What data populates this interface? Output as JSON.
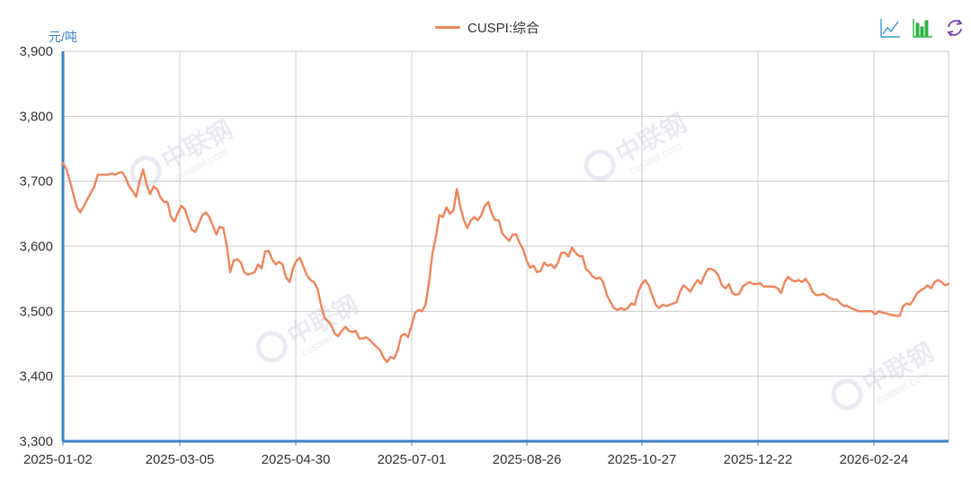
{
  "chart_data": {
    "type": "line",
    "ylabel": "元/吨",
    "ylim": [
      3300,
      3900
    ],
    "yticks": [
      3300,
      3400,
      3500,
      3600,
      3700,
      3800,
      3900
    ],
    "ytick_labels": [
      "3,300",
      "3,400",
      "3,500",
      "3,600",
      "3,700",
      "3,800",
      "3,900"
    ],
    "xticks": [
      "2025-01-02",
      "2025-03-05",
      "2025-04-30",
      "2025-07-01",
      "2025-08-26",
      "2025-10-27",
      "2025-12-22",
      "2026-02-24"
    ],
    "grid": true,
    "legend_position": "top-center",
    "series": [
      {
        "name": "CUSPI:综合",
        "color": "#f0845a",
        "values": [
          3728,
          3718,
          3700,
          3680,
          3660,
          3652,
          3662,
          3672,
          3682,
          3692,
          3710,
          3710,
          3710,
          3710,
          3712,
          3710,
          3713,
          3714,
          3705,
          3692,
          3685,
          3676,
          3700,
          3718,
          3695,
          3680,
          3692,
          3688,
          3675,
          3668,
          3668,
          3645,
          3638,
          3652,
          3662,
          3657,
          3640,
          3625,
          3622,
          3635,
          3648,
          3652,
          3645,
          3632,
          3618,
          3630,
          3628,
          3600,
          3560,
          3578,
          3580,
          3575,
          3560,
          3556,
          3558,
          3560,
          3572,
          3566,
          3592,
          3593,
          3580,
          3572,
          3576,
          3572,
          3552,
          3545,
          3566,
          3578,
          3582,
          3568,
          3555,
          3548,
          3545,
          3535,
          3510,
          3490,
          3485,
          3478,
          3465,
          3462,
          3470,
          3476,
          3470,
          3468,
          3470,
          3458,
          3458,
          3460,
          3456,
          3450,
          3445,
          3440,
          3428,
          3422,
          3430,
          3427,
          3440,
          3462,
          3465,
          3460,
          3478,
          3498,
          3502,
          3500,
          3510,
          3545,
          3590,
          3615,
          3648,
          3645,
          3660,
          3650,
          3655,
          3688,
          3660,
          3640,
          3628,
          3640,
          3645,
          3640,
          3648,
          3662,
          3668,
          3650,
          3640,
          3640,
          3620,
          3614,
          3608,
          3618,
          3618,
          3605,
          3595,
          3578,
          3567,
          3570,
          3560,
          3562,
          3575,
          3570,
          3572,
          3566,
          3575,
          3590,
          3590,
          3584,
          3598,
          3590,
          3585,
          3585,
          3565,
          3560,
          3553,
          3550,
          3552,
          3544,
          3525,
          3515,
          3505,
          3502,
          3505,
          3502,
          3505,
          3512,
          3510,
          3530,
          3542,
          3548,
          3540,
          3525,
          3510,
          3505,
          3510,
          3508,
          3510,
          3512,
          3514,
          3530,
          3540,
          3535,
          3530,
          3540,
          3548,
          3542,
          3555,
          3565,
          3565,
          3562,
          3555,
          3540,
          3535,
          3542,
          3528,
          3525,
          3527,
          3538,
          3542,
          3545,
          3542,
          3542,
          3543,
          3538,
          3538,
          3538,
          3538,
          3535,
          3528,
          3545,
          3553,
          3548,
          3546,
          3548,
          3545,
          3550,
          3542,
          3530,
          3525,
          3525,
          3527,
          3524,
          3520,
          3518,
          3518,
          3512,
          3508,
          3508,
          3505,
          3503,
          3500,
          3500,
          3500,
          3500,
          3500,
          3495,
          3500,
          3498,
          3497,
          3495,
          3494,
          3493,
          3493,
          3508,
          3512,
          3510,
          3518,
          3528,
          3532,
          3535,
          3540,
          3535,
          3545,
          3548,
          3545,
          3540,
          3542
        ]
      }
    ]
  },
  "toolbox": {
    "line_icon_color": "#3a98d8",
    "bar_icon_color": "#2fb344",
    "refresh_icon_color": "#7a3cb0"
  },
  "watermark": {
    "brand": "中联钢",
    "site": "custeel.com"
  }
}
